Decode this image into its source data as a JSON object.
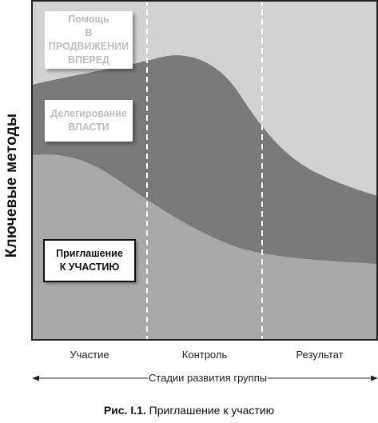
{
  "y_axis_label": "Ключевые методы",
  "methods": [
    {
      "lines": [
        "Помощь",
        "В ПРОДВИЖЕНИИ",
        "ВПЕРЕД"
      ],
      "style": "light"
    },
    {
      "lines": [
        "Делегирование",
        "ВЛАСТИ"
      ],
      "style": "light"
    },
    {
      "lines": [
        "Приглашение",
        "К УЧАСТИЮ"
      ],
      "style": "highlighted"
    }
  ],
  "stages": [
    "Участие",
    "Контроль",
    "Результат"
  ],
  "x_axis_label": "Стадии развития группы",
  "caption": {
    "label": "Рис. I.1.",
    "text": "Приглашение к участию"
  },
  "colors": {
    "background_band": "#d2d2d2",
    "middle_band": "#7a7a7a",
    "bottom_band": "#a9a9a9",
    "frame": "#222222",
    "divider": "#ffffff"
  }
}
